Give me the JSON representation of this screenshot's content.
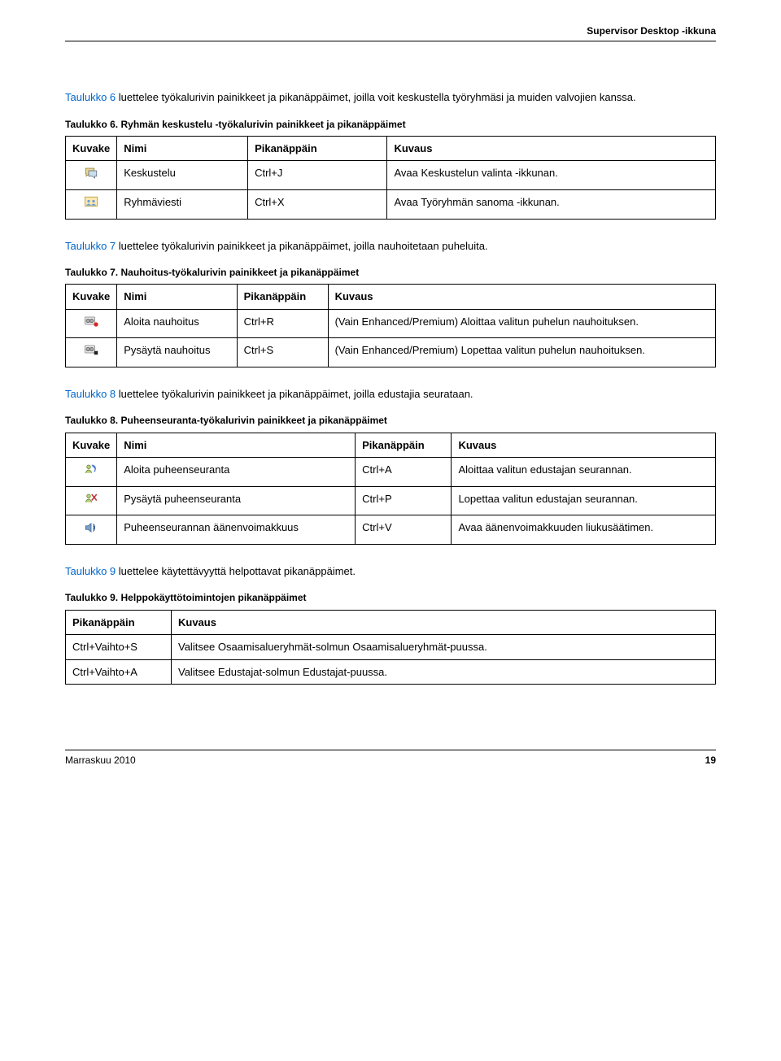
{
  "header": {
    "title": "Supervisor Desktop -ikkuna"
  },
  "sect6": {
    "intro_linked": "Taulukko 6",
    "intro_rest": " luettelee työkalurivin painikkeet ja pikanäppäimet, joilla voit keskustella työryhmäsi ja muiden valvojien kanssa.",
    "caption_num": "Taulukko 6.",
    "caption_rest": "Ryhmän keskustelu -työkalurivin painikkeet ja pikanäppäimet",
    "columns": [
      "Kuvake",
      "Nimi",
      "Pikanäppäin",
      "Kuvaus"
    ],
    "rows": [
      {
        "icon": "chat",
        "nimi": "Keskustelu",
        "pika": "Ctrl+J",
        "kuv": "Avaa Keskustelun valinta -ikkunan."
      },
      {
        "icon": "group-msg",
        "nimi": "Ryhmäviesti",
        "pika": "Ctrl+X",
        "kuv": "Avaa Työryhmän sanoma -ikkunan."
      }
    ]
  },
  "sect7": {
    "intro_linked": "Taulukko 7",
    "intro_rest": " luettelee työkalurivin painikkeet ja pikanäppäimet, joilla nauhoitetaan puheluita.",
    "caption_num": "Taulukko 7.",
    "caption_rest": "Nauhoitus-työkalurivin painikkeet ja pikanäppäimet",
    "columns": [
      "Kuvake",
      "Nimi",
      "Pikanäppäin",
      "Kuvaus"
    ],
    "rows": [
      {
        "icon": "rec-start",
        "nimi": "Aloita nauhoitus",
        "pika": "Ctrl+R",
        "kuv": "(Vain Enhanced/Premium) Aloittaa valitun puhelun nauhoituksen."
      },
      {
        "icon": "rec-stop",
        "nimi": "Pysäytä nauhoitus",
        "pika": "Ctrl+S",
        "kuv": "(Vain Enhanced/Premium) Lopettaa valitun puhelun nauhoituksen."
      }
    ]
  },
  "sect8": {
    "intro_linked": "Taulukko 8",
    "intro_rest": " luettelee työkalurivin painikkeet ja pikanäppäimet, joilla edustajia seurataan.",
    "caption_num": "Taulukko 8.",
    "caption_rest": "Puheenseuranta-työkalurivin painikkeet ja pikanäppäimet",
    "columns": [
      "Kuvake",
      "Nimi",
      "Pikanäppäin",
      "Kuvaus"
    ],
    "rows": [
      {
        "icon": "mon-start",
        "nimi": "Aloita puheenseuranta",
        "pika": "Ctrl+A",
        "kuv": "Aloittaa valitun edustajan seurannan."
      },
      {
        "icon": "mon-stop",
        "nimi": "Pysäytä puheenseuranta",
        "pika": "Ctrl+P",
        "kuv": "Lopettaa valitun edustajan seurannan."
      },
      {
        "icon": "volume",
        "nimi": "Puheenseurannan äänenvoimakkuus",
        "pika": "Ctrl+V",
        "kuv": "Avaa äänenvoimakkuuden liukusäätimen."
      }
    ]
  },
  "sect9": {
    "intro_linked": "Taulukko 9",
    "intro_rest": " luettelee käytettävyyttä helpottavat pikanäppäimet.",
    "caption_num": "Taulukko 9.",
    "caption_rest": "Helppokäyttötoimintojen pikanäppäimet",
    "columns": [
      "Pikanäppäin",
      "Kuvaus"
    ],
    "rows": [
      {
        "pika": "Ctrl+Vaihto+S",
        "kuv": "Valitsee Osaamisalueryhmät-solmun Osaamisalueryhmät-puussa."
      },
      {
        "pika": "Ctrl+Vaihto+A",
        "kuv": "Valitsee Edustajat-solmun Edustajat-puussa."
      }
    ]
  },
  "footer": {
    "date": "Marraskuu 2010",
    "page": "19"
  }
}
